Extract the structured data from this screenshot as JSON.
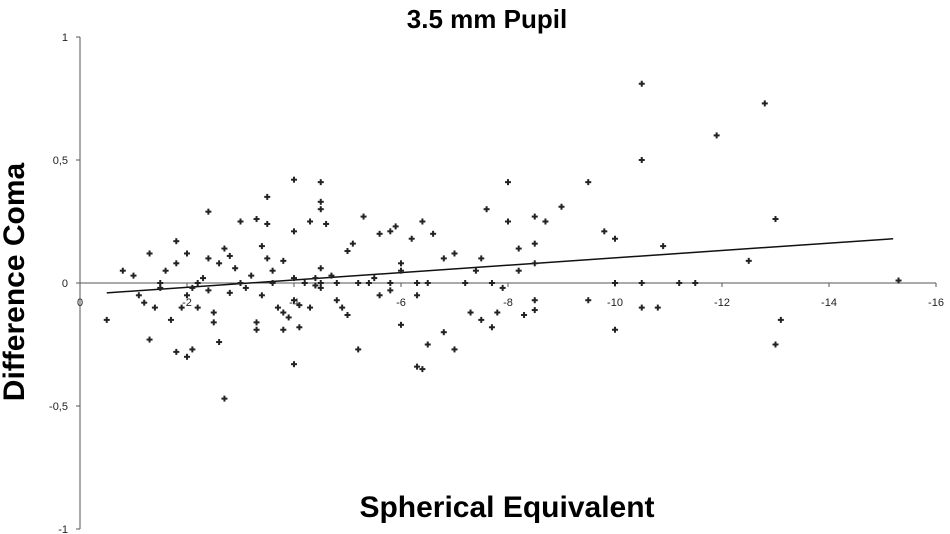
{
  "chart_data": {
    "type": "scatter",
    "title": "3.5 mm Pupil",
    "xlabel": "Spherical Equivalent",
    "ylabel": "Difference Coma",
    "xlim": [
      0,
      -16
    ],
    "ylim": [
      -1,
      1
    ],
    "x_ticks": [
      0,
      -2,
      -4,
      -6,
      -8,
      -10,
      -12,
      -14,
      -16
    ],
    "x_tick_labels": [
      "0",
      "-2",
      "-4",
      "-6",
      "-8",
      "-10",
      "-12",
      "-14",
      "-16"
    ],
    "y_ticks": [
      1,
      0.5,
      0,
      -0.5,
      -1
    ],
    "y_tick_labels": [
      "1",
      "0,5",
      "0",
      "-0,5",
      "-1"
    ],
    "grid": false,
    "legend": "none",
    "marker_color": "#222222",
    "trendline": {
      "x": [
        -0.5,
        -15.2
      ],
      "y": [
        -0.04,
        0.18
      ]
    },
    "points": [
      [
        -0.5,
        -0.15
      ],
      [
        -0.8,
        0.05
      ],
      [
        -1,
        0.03
      ],
      [
        -1.1,
        -0.05
      ],
      [
        -1.2,
        -0.08
      ],
      [
        -1.3,
        -0.23
      ],
      [
        -1.3,
        0.12
      ],
      [
        -1.4,
        -0.1
      ],
      [
        -1.5,
        0.0
      ],
      [
        -1.5,
        -0.02
      ],
      [
        -1.6,
        0.05
      ],
      [
        -1.7,
        -0.15
      ],
      [
        -1.8,
        0.17
      ],
      [
        -1.8,
        0.08
      ],
      [
        -1.8,
        -0.28
      ],
      [
        -1.9,
        -0.1
      ],
      [
        -2,
        -0.05
      ],
      [
        -2,
        0.12
      ],
      [
        -2,
        -0.3
      ],
      [
        -2.1,
        -0.02
      ],
      [
        -2.1,
        -0.27
      ],
      [
        -2.2,
        0.0
      ],
      [
        -2.2,
        -0.1
      ],
      [
        -2.3,
        0.02
      ],
      [
        -2.4,
        0.1
      ],
      [
        -2.4,
        -0.03
      ],
      [
        -2.4,
        0.29
      ],
      [
        -2.5,
        -0.12
      ],
      [
        -2.5,
        -0.16
      ],
      [
        -2.6,
        0.08
      ],
      [
        -2.6,
        -0.24
      ],
      [
        -2.7,
        0.14
      ],
      [
        -2.7,
        -0.47
      ],
      [
        -2.8,
        0.11
      ],
      [
        -2.8,
        -0.04
      ],
      [
        -2.9,
        0.06
      ],
      [
        -3,
        0.0
      ],
      [
        -3,
        0.25
      ],
      [
        -3.1,
        -0.02
      ],
      [
        -3.2,
        0.03
      ],
      [
        -3.3,
        -0.16
      ],
      [
        -3.3,
        0.26
      ],
      [
        -3.3,
        -0.19
      ],
      [
        -3.4,
        0.15
      ],
      [
        -3.4,
        -0.05
      ],
      [
        -3.5,
        0.1
      ],
      [
        -3.5,
        0.35
      ],
      [
        -3.5,
        0.24
      ],
      [
        -3.6,
        0.0
      ],
      [
        -3.6,
        0.05
      ],
      [
        -3.7,
        -0.1
      ],
      [
        -3.8,
        -0.12
      ],
      [
        -3.8,
        -0.19
      ],
      [
        -3.8,
        0.09
      ],
      [
        -3.9,
        -0.14
      ],
      [
        -4,
        0.02
      ],
      [
        -4,
        -0.07
      ],
      [
        -4,
        0.42
      ],
      [
        -4,
        0.21
      ],
      [
        -4,
        -0.33
      ],
      [
        -4.1,
        -0.09
      ],
      [
        -4.1,
        -0.18
      ],
      [
        -4.2,
        0.0
      ],
      [
        -4.3,
        0.25
      ],
      [
        -4.3,
        -0.1
      ],
      [
        -4.4,
        0.02
      ],
      [
        -4.4,
        -0.01
      ],
      [
        -4.5,
        0.0
      ],
      [
        -4.5,
        0.06
      ],
      [
        -4.5,
        0.41
      ],
      [
        -4.5,
        0.33
      ],
      [
        -4.5,
        -0.02
      ],
      [
        -4.5,
        0.3
      ],
      [
        -4.6,
        0.24
      ],
      [
        -4.7,
        0.03
      ],
      [
        -4.8,
        0.0
      ],
      [
        -4.8,
        -0.07
      ],
      [
        -4.9,
        -0.1
      ],
      [
        -5,
        0.13
      ],
      [
        -5,
        -0.13
      ],
      [
        -5.1,
        0.16
      ],
      [
        -5.2,
        -0.27
      ],
      [
        -5.2,
        0.0
      ],
      [
        -5.3,
        0.27
      ],
      [
        -5.4,
        0.0
      ],
      [
        -5.5,
        0.02
      ],
      [
        -5.6,
        0.2
      ],
      [
        -5.6,
        -0.05
      ],
      [
        -5.8,
        0.0
      ],
      [
        -5.8,
        0.21
      ],
      [
        -5.8,
        -0.03
      ],
      [
        -5.9,
        0.23
      ],
      [
        -6,
        0.05
      ],
      [
        -6,
        0.08
      ],
      [
        -6,
        -0.17
      ],
      [
        -6.2,
        0.18
      ],
      [
        -6.3,
        -0.34
      ],
      [
        -6.3,
        -0.05
      ],
      [
        -6.3,
        0.0
      ],
      [
        -6.4,
        0.25
      ],
      [
        -6.4,
        -0.35
      ],
      [
        -6.5,
        -0.25
      ],
      [
        -6.5,
        0.0
      ],
      [
        -6.6,
        0.2
      ],
      [
        -6.8,
        0.1
      ],
      [
        -6.8,
        -0.2
      ],
      [
        -7,
        0.12
      ],
      [
        -7,
        -0.27
      ],
      [
        -7.2,
        0.0
      ],
      [
        -7.3,
        -0.12
      ],
      [
        -7.4,
        0.05
      ],
      [
        -7.5,
        0.1
      ],
      [
        -7.5,
        -0.15
      ],
      [
        -7.6,
        0.3
      ],
      [
        -7.7,
        -0.18
      ],
      [
        -7.7,
        0.0
      ],
      [
        -7.8,
        -0.12
      ],
      [
        -7.9,
        -0.02
      ],
      [
        -8,
        0.41
      ],
      [
        -8,
        0.25
      ],
      [
        -8.2,
        0.14
      ],
      [
        -8.2,
        0.05
      ],
      [
        -8.3,
        -0.13
      ],
      [
        -8.5,
        0.16
      ],
      [
        -8.5,
        -0.07
      ],
      [
        -8.5,
        0.27
      ],
      [
        -8.5,
        -0.11
      ],
      [
        -8.5,
        0.08
      ],
      [
        -8.7,
        0.25
      ],
      [
        -9,
        0.31
      ],
      [
        -9.5,
        0.41
      ],
      [
        -9.5,
        -0.07
      ],
      [
        -9.8,
        0.21
      ],
      [
        -10,
        0.0
      ],
      [
        -10,
        0.18
      ],
      [
        -10,
        -0.19
      ],
      [
        -10.5,
        0.81
      ],
      [
        -10.5,
        0.5
      ],
      [
        -10.5,
        0.0
      ],
      [
        -10.5,
        -0.1
      ],
      [
        -10.8,
        -0.1
      ],
      [
        -10.9,
        0.15
      ],
      [
        -11.2,
        0.0
      ],
      [
        -11.5,
        0.0
      ],
      [
        -11.9,
        0.6
      ],
      [
        -12.5,
        0.09
      ],
      [
        -12.8,
        0.73
      ],
      [
        -13,
        0.26
      ],
      [
        -13,
        -0.25
      ],
      [
        -13.1,
        -0.15
      ],
      [
        -15.3,
        0.01
      ]
    ]
  }
}
